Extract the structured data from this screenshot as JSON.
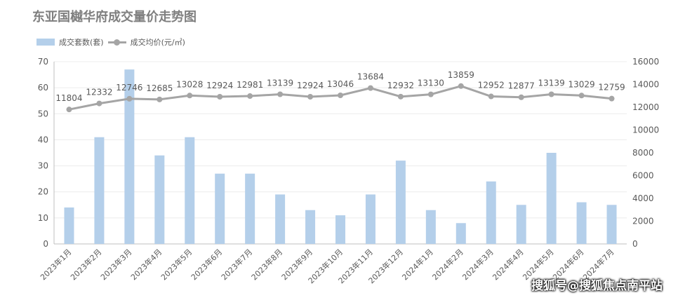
{
  "title": "东亚国樾华府成交量价走势图",
  "legend": {
    "bar_label": "成交套数(套)",
    "line_label": "成交均价(元/㎡)"
  },
  "watermark": "搜狐号@搜狐焦点南平站",
  "colors": {
    "bar": "#b4cfea",
    "line": "#a5a5a5",
    "axis": "#bfbfbf",
    "grid": "#ececec",
    "text": "#595959"
  },
  "chart_data": {
    "type": "bar+line",
    "title": "东亚国樾华府成交量价走势图",
    "categories": [
      "2023年1月",
      "2023年2月",
      "2023年3月",
      "2023年4月",
      "2023年5月",
      "2023年6月",
      "2023年7月",
      "2023年8月",
      "2023年9月",
      "2023年10月",
      "2023年11月",
      "2023年12月",
      "2024年1月",
      "2024年2月",
      "2024年3月",
      "2024年4月",
      "2024年5月",
      "2024年6月",
      "2024年7月"
    ],
    "series": [
      {
        "name": "成交套数(套)",
        "type": "bar",
        "axis": "left",
        "values": [
          14,
          41,
          67,
          34,
          41,
          27,
          27,
          19,
          13,
          11,
          19,
          32,
          13,
          8,
          24,
          15,
          35,
          16,
          15
        ]
      },
      {
        "name": "成交均价(元/㎡)",
        "type": "line",
        "axis": "right",
        "values": [
          11804,
          12332,
          12746,
          12685,
          13028,
          12924,
          12981,
          13139,
          12924,
          13046,
          13684,
          12932,
          13130,
          13859,
          12952,
          12877,
          13139,
          13029,
          12759
        ]
      }
    ],
    "ylim_left": [
      0,
      70
    ],
    "yticks_left": [
      "0",
      "10",
      "20",
      "30",
      "40",
      "50",
      "60",
      "70"
    ],
    "ylim_right": [
      0,
      16000
    ],
    "yticks_right": [
      "0",
      "2000",
      "4000",
      "6000",
      "8000",
      "10000",
      "12000",
      "14000",
      "16000"
    ],
    "grid": true,
    "legend_position": "top-left",
    "line_data_labels": true
  }
}
